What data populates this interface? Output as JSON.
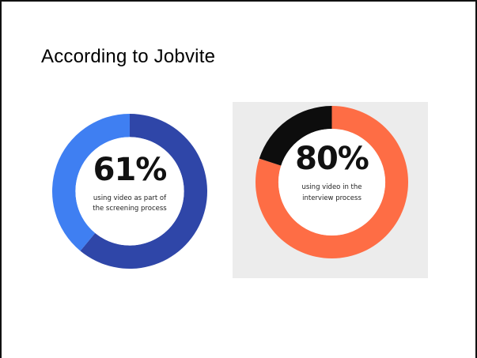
{
  "slide": {
    "title": "According to Jobvite"
  },
  "chart_data": [
    {
      "type": "pie",
      "style": "donut",
      "value_label": "61%",
      "caption": "using video as part of the screening process",
      "segments": [
        {
          "value": 61,
          "color": "#2f46a8"
        },
        {
          "value": 39,
          "color": "#3f7ff2"
        }
      ],
      "center_background": "#ffffff",
      "panel_background": "#ffffff"
    },
    {
      "type": "pie",
      "style": "donut",
      "value_label": "80%",
      "caption": "using video in the interview process",
      "segments": [
        {
          "value": 80,
          "color": "#fe6d45"
        },
        {
          "value": 20,
          "color": "#0d0d0d"
        }
      ],
      "center_background": "#ffffff",
      "panel_background": "#ececec"
    }
  ]
}
